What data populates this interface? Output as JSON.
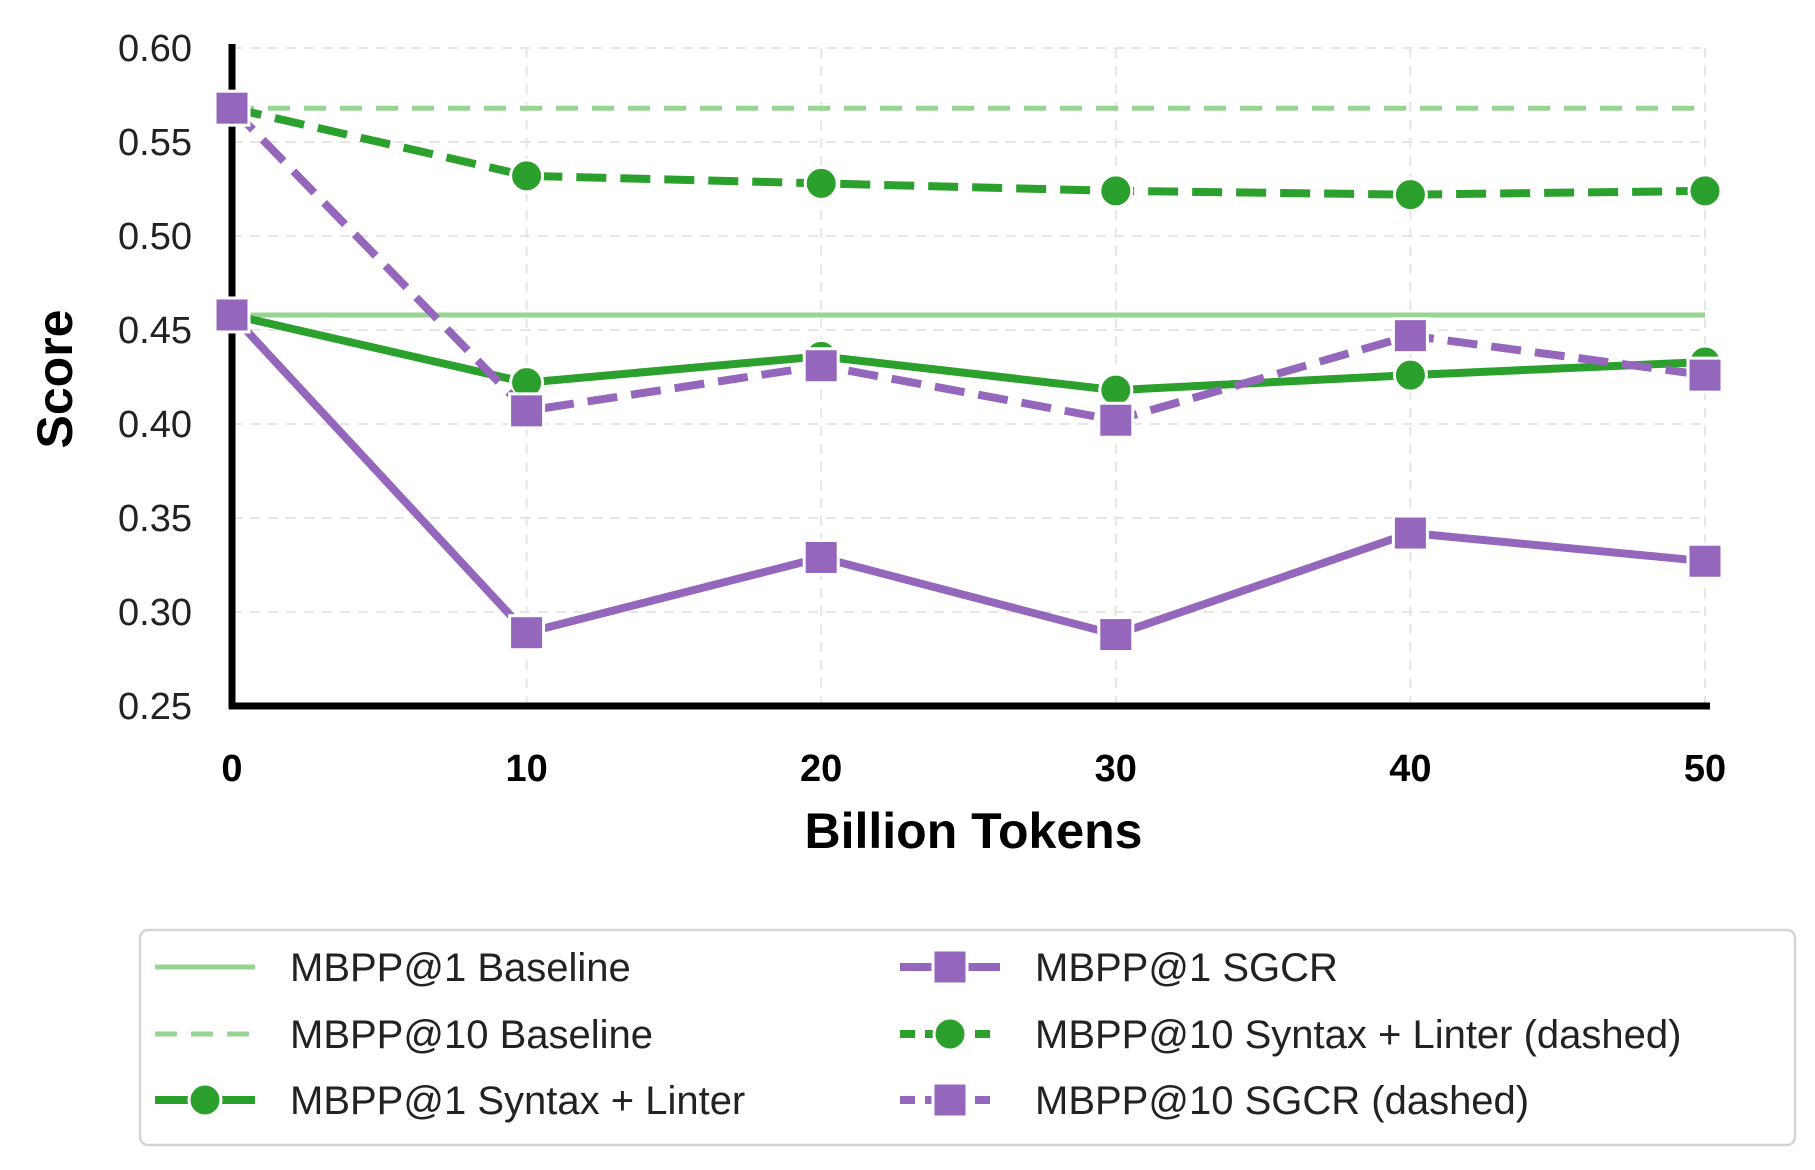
{
  "colors": {
    "baseline": "#98d594",
    "green": "#2ca02c",
    "purple": "#9467bd",
    "grid": "#e6e6e6",
    "axis": "#000000"
  },
  "chart_data": {
    "type": "line",
    "xlabel": "Billion Tokens",
    "ylabel": "Score",
    "xlim": [
      0,
      50
    ],
    "ylim": [
      0.25,
      0.6
    ],
    "x_ticks": [
      "0",
      "10",
      "20",
      "30",
      "40",
      "50"
    ],
    "y_ticks": [
      "0.25",
      "0.30",
      "0.35",
      "0.40",
      "0.45",
      "0.50",
      "0.55",
      "0.60"
    ],
    "grid": true,
    "legend_position": "bottom",
    "x": [
      0,
      10,
      20,
      30,
      40,
      50
    ],
    "series": [
      {
        "name": "MBPP@1 Baseline",
        "color": "#98d594",
        "style": "solid",
        "marker": "none",
        "values": [
          0.458,
          0.458,
          0.458,
          0.458,
          0.458,
          0.458
        ]
      },
      {
        "name": "MBPP@10 Baseline",
        "color": "#98d594",
        "style": "dashed",
        "marker": "none",
        "values": [
          0.568,
          0.568,
          0.568,
          0.568,
          0.568,
          0.568
        ]
      },
      {
        "name": "MBPP@1 Syntax + Linter",
        "color": "#2ca02c",
        "style": "solid",
        "marker": "circle",
        "values": [
          0.458,
          0.422,
          0.436,
          0.418,
          0.426,
          0.433
        ]
      },
      {
        "name": "MBPP@1 SGCR",
        "color": "#9467bd",
        "style": "solid",
        "marker": "square",
        "values": [
          0.458,
          0.289,
          0.329,
          0.288,
          0.342,
          0.327
        ]
      },
      {
        "name": "MBPP@10 Syntax + Linter (dashed)",
        "color": "#2ca02c",
        "style": "dashed",
        "marker": "circle",
        "values": [
          0.568,
          0.532,
          0.528,
          0.524,
          0.522,
          0.524
        ]
      },
      {
        "name": "MBPP@10 SGCR (dashed)",
        "color": "#9467bd",
        "style": "dashed",
        "marker": "square",
        "values": [
          0.568,
          0.407,
          0.431,
          0.402,
          0.447,
          0.426
        ]
      }
    ]
  }
}
